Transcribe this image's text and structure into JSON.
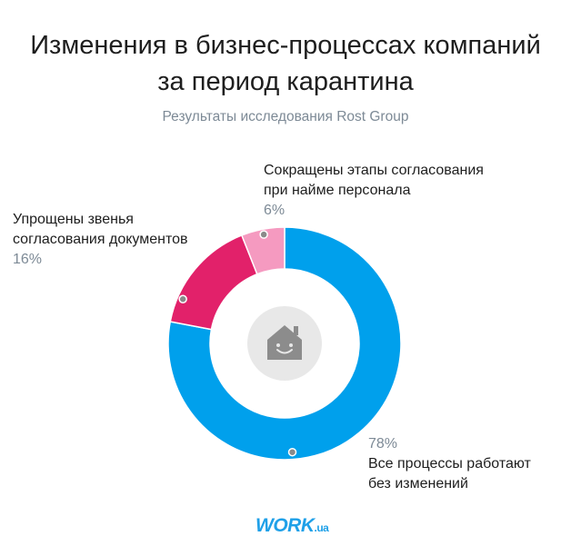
{
  "header": {
    "title_line1": "Изменения в бизнес-процессах компаний",
    "title_line2": "за период карантина",
    "subtitle": "Результаты исследования Rost Group"
  },
  "chart_data": {
    "type": "pie",
    "donut": true,
    "title": "Изменения в бизнес-процессах компаний за период карантина",
    "subtitle": "Результаты исследования Rost Group",
    "slices": [
      {
        "label": "Все процессы работают без изменений",
        "value": 78,
        "color": "#00a0ec",
        "label_lines": [
          "Все процессы работают",
          "без изменений"
        ],
        "pct_text": "78%"
      },
      {
        "label": "Упрощены звенья согласования документов",
        "value": 16,
        "color": "#e2216a",
        "label_lines": [
          "Упрощены звенья",
          "согласования документов"
        ],
        "pct_text": "16%"
      },
      {
        "label": "Сокращены этапы согласования при найме персонала",
        "value": 6,
        "color": "#f59ac0",
        "label_lines": [
          "Сокращены этапы согласования",
          "при найме персонала"
        ],
        "pct_text": "6%"
      }
    ],
    "legend": "none"
  },
  "center_icon": "house-smile-icon",
  "logo": {
    "main": "WORK",
    "suffix": ".ua"
  }
}
